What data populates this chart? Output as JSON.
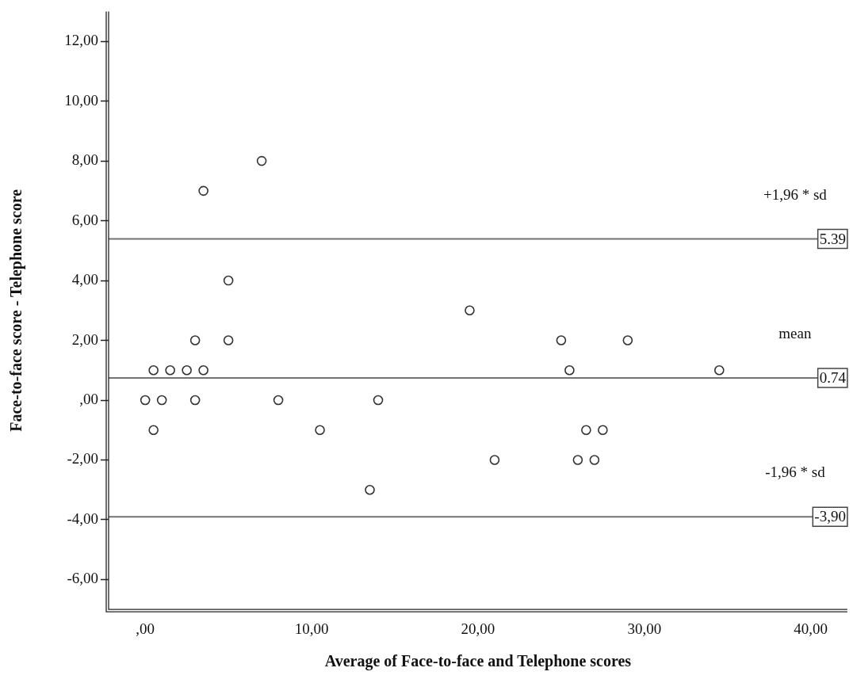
{
  "chart_data": {
    "type": "scatter",
    "xlabel": "Average of Face-to-face and Telephone scores",
    "ylabel": "Face-to-face score - Telephone score",
    "x": [
      0,
      0.5,
      1.5,
      2.5,
      3.5,
      1,
      3,
      3,
      5,
      5,
      3.5,
      7,
      8,
      0.5,
      10.5,
      14,
      13.5,
      19.5,
      25,
      29,
      25.5,
      26.5,
      27.5,
      21,
      26,
      27,
      34.5
    ],
    "values": [
      0,
      1,
      1,
      1,
      1,
      0,
      0,
      2,
      2,
      4,
      7,
      8,
      0,
      -1,
      -1,
      0,
      -3,
      3,
      2,
      2,
      1,
      -1,
      -1,
      -2,
      -2,
      -2,
      1
    ],
    "color": "#333333",
    "marker": "circle",
    "grid": false,
    "legend": false,
    "xlim": [
      -2.2,
      42.2
    ],
    "ylim": [
      -7,
      13
    ],
    "xticks": [
      {
        "value": 0,
        "label": ",00"
      },
      {
        "value": 10,
        "label": "10,00"
      },
      {
        "value": 20,
        "label": "20,00"
      },
      {
        "value": 30,
        "label": "30,00"
      },
      {
        "value": 40,
        "label": "40,00"
      }
    ],
    "yticks": [
      {
        "value": -6,
        "label": "-6,00"
      },
      {
        "value": -4,
        "label": "-4,00"
      },
      {
        "value": -2,
        "label": "-2,00"
      },
      {
        "value": 0,
        "label": ",00"
      },
      {
        "value": 2,
        "label": "2,00"
      },
      {
        "value": 4,
        "label": "4,00"
      },
      {
        "value": 6,
        "label": "6,00"
      },
      {
        "value": 8,
        "label": "8,00"
      },
      {
        "value": 10,
        "label": "10,00"
      },
      {
        "value": 12,
        "label": "12,00"
      }
    ],
    "ref_lines": [
      {
        "axis": "y",
        "value": 5.39,
        "label": "5.39",
        "color": "#737373"
      },
      {
        "axis": "y",
        "value": 0.74,
        "label": "0.74",
        "color": "#737373"
      },
      {
        "axis": "y",
        "value": -3.9,
        "label": "-3,90",
        "color": "#737373"
      }
    ],
    "annotations": [
      "+1,96 * sd",
      "mean",
      "-1,96 * sd"
    ]
  }
}
